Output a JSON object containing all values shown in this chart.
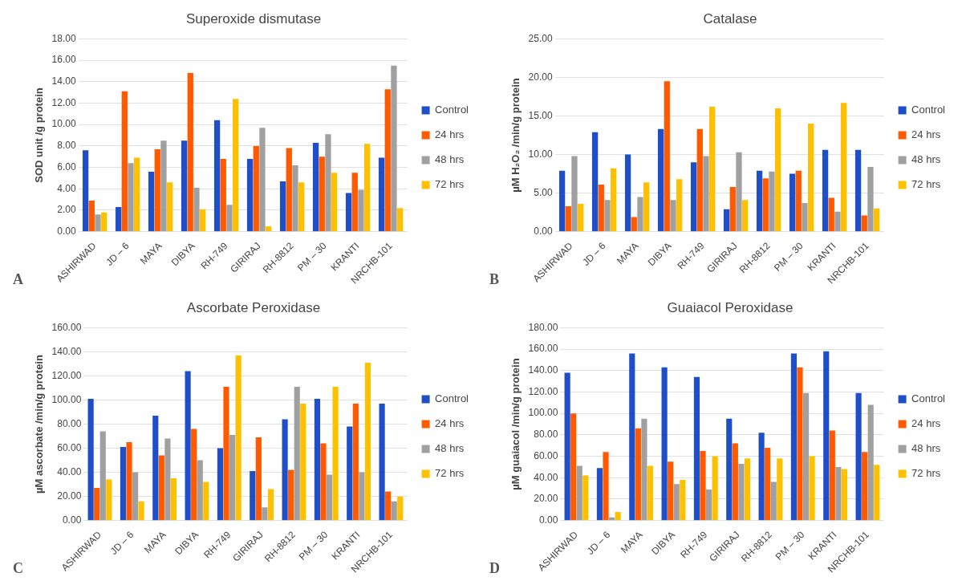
{
  "chart_data": [
    {
      "type": "bar",
      "title": "Superoxide dismutase",
      "ylabel": "SOD unit /g protein",
      "annotations": [
        "A"
      ],
      "legend": "right",
      "grid": "y",
      "categories": [
        "ASHIRWAD",
        "JD – 6",
        "MAYA",
        "DIBYA",
        "RH-749",
        "GIRIRAJ",
        "RH-8812",
        "PM – 30",
        "KRANTI",
        "NRCHB-101"
      ],
      "series": [
        {
          "name": "Control",
          "color": "#1f4fc8",
          "values": [
            7.6,
            2.3,
            5.6,
            8.5,
            10.4,
            6.8,
            4.7,
            8.3,
            3.6,
            6.9
          ]
        },
        {
          "name": "24 hrs",
          "color": "#ff5a00",
          "values": [
            2.9,
            13.1,
            7.7,
            14.8,
            6.8,
            8.0,
            7.8,
            7.0,
            5.5,
            13.3
          ]
        },
        {
          "name": "48 hrs",
          "color": "#a0a0a0",
          "values": [
            1.6,
            6.4,
            8.5,
            4.1,
            2.5,
            9.7,
            6.2,
            9.1,
            3.9,
            15.5
          ]
        },
        {
          "name": "72 hrs",
          "color": "#ffc000",
          "values": [
            1.8,
            6.9,
            4.6,
            2.1,
            12.4,
            0.5,
            4.6,
            5.5,
            8.2,
            2.2
          ]
        }
      ],
      "ylim": [
        0,
        18
      ],
      "yticks": [
        {
          "value": 0,
          "label": "0.00"
        },
        {
          "value": 2,
          "label": "2.00"
        },
        {
          "value": 4,
          "label": "4.00"
        },
        {
          "value": 6,
          "label": "6.00"
        },
        {
          "value": 8,
          "label": "8.00"
        },
        {
          "value": 10,
          "label": "10.00"
        },
        {
          "value": 12,
          "label": "12.00"
        },
        {
          "value": 14,
          "label": "14.00"
        },
        {
          "value": 16,
          "label": "16.00"
        },
        {
          "value": 18,
          "label": "18.00"
        }
      ]
    },
    {
      "type": "bar",
      "title": "Catalase",
      "ylabel": "µM H₂O₂ /min/g protein",
      "annotations": [
        "B"
      ],
      "legend": "right",
      "grid": "y",
      "categories": [
        "ASHIRWAD",
        "JD – 6",
        "MAYA",
        "DIBYA",
        "RH-749",
        "GIRIRAJ",
        "RH-8812",
        "PM – 30",
        "KRANTI",
        "NRCHB-101"
      ],
      "series": [
        {
          "name": "Control",
          "color": "#1f4fc8",
          "values": [
            7.9,
            12.9,
            10.0,
            13.3,
            9.0,
            2.9,
            7.9,
            7.5,
            10.6,
            10.6
          ]
        },
        {
          "name": "24 hrs",
          "color": "#ff5a00",
          "values": [
            3.3,
            6.1,
            1.9,
            19.5,
            13.3,
            5.8,
            6.9,
            7.9,
            4.4,
            2.1
          ]
        },
        {
          "name": "48 hrs",
          "color": "#a0a0a0",
          "values": [
            9.8,
            4.1,
            4.5,
            4.1,
            9.8,
            10.3,
            7.8,
            3.7,
            2.6,
            8.4
          ]
        },
        {
          "name": "72 hrs",
          "color": "#ffc000",
          "values": [
            3.6,
            8.2,
            6.4,
            6.8,
            16.2,
            4.1,
            16.0,
            14.0,
            16.7,
            3.0
          ]
        }
      ],
      "ylim": [
        0,
        25
      ],
      "yticks": [
        {
          "value": 0,
          "label": "0.00"
        },
        {
          "value": 5,
          "label": "5.00"
        },
        {
          "value": 10,
          "label": "10.00"
        },
        {
          "value": 15,
          "label": "15.00"
        },
        {
          "value": 20,
          "label": "20.00"
        },
        {
          "value": 25,
          "label": "25.00"
        }
      ]
    },
    {
      "type": "bar",
      "title": "Ascorbate Peroxidase",
      "ylabel": "µM ascorbate /min/g protein",
      "annotations": [
        "C"
      ],
      "legend": "right",
      "grid": "y",
      "categories": [
        "ASHIRWAD",
        "JD – 6",
        "MAYA",
        "DIBYA",
        "RH-749",
        "GIRIRAJ",
        "RH-8812",
        "PM – 30",
        "KRANTI",
        "NRCHB-101"
      ],
      "series": [
        {
          "name": "Control",
          "color": "#1f4fc8",
          "values": [
            101,
            61,
            87,
            124,
            60,
            41,
            84,
            101,
            78,
            97
          ]
        },
        {
          "name": "24 hrs",
          "color": "#ff5a00",
          "values": [
            27,
            65,
            54,
            76,
            111,
            69,
            42,
            64,
            97,
            24
          ]
        },
        {
          "name": "48 hrs",
          "color": "#a0a0a0",
          "values": [
            74,
            40,
            68,
            50,
            71,
            11,
            111,
            38,
            40,
            16
          ]
        },
        {
          "name": "72 hrs",
          "color": "#ffc000",
          "values": [
            34,
            16,
            35,
            32,
            137,
            26,
            97,
            111,
            131,
            20
          ]
        }
      ],
      "ylim": [
        0,
        160
      ],
      "yticks": [
        {
          "value": 0,
          "label": "0.00"
        },
        {
          "value": 20,
          "label": "20.00"
        },
        {
          "value": 40,
          "label": "40.00"
        },
        {
          "value": 60,
          "label": "60.00"
        },
        {
          "value": 80,
          "label": "80.00"
        },
        {
          "value": 100,
          "label": "100.00"
        },
        {
          "value": 120,
          "label": "120.00"
        },
        {
          "value": 140,
          "label": "140.00"
        },
        {
          "value": 160,
          "label": "160.00"
        }
      ]
    },
    {
      "type": "bar",
      "title": "Guaiacol Peroxidase",
      "ylabel": "µM guaiacol /min/g protein",
      "annotations": [
        "D"
      ],
      "legend": "right",
      "grid": "y",
      "categories": [
        "ASHIRWAD",
        "JD – 6",
        "MAYA",
        "DIBYA",
        "RH-749",
        "GIRIRAJ",
        "RH-8812",
        "PM – 30",
        "KRANTI",
        "NRCHB-101"
      ],
      "series": [
        {
          "name": "Control",
          "color": "#1f4fc8",
          "values": [
            138,
            49,
            156,
            143,
            134,
            95,
            82,
            156,
            158,
            119
          ]
        },
        {
          "name": "24 hrs",
          "color": "#ff5a00",
          "values": [
            100,
            64,
            86,
            55,
            65,
            72,
            68,
            143,
            84,
            64
          ]
        },
        {
          "name": "48 hrs",
          "color": "#a0a0a0",
          "values": [
            51,
            3,
            95,
            34,
            29,
            53,
            36,
            119,
            50,
            108
          ]
        },
        {
          "name": "72 hrs",
          "color": "#ffc000",
          "values": [
            42,
            8,
            51,
            38,
            60,
            58,
            58,
            60,
            48,
            52
          ]
        }
      ],
      "ylim": [
        0,
        180
      ],
      "yticks": [
        {
          "value": 0,
          "label": "0.00"
        },
        {
          "value": 20,
          "label": "20.00"
        },
        {
          "value": 40,
          "label": "40.00"
        },
        {
          "value": 60,
          "label": "60.00"
        },
        {
          "value": 80,
          "label": "80.00"
        },
        {
          "value": 100,
          "label": "100.00"
        },
        {
          "value": 120,
          "label": "120.00"
        },
        {
          "value": 140,
          "label": "140.00"
        },
        {
          "value": 160,
          "label": "160.00"
        },
        {
          "value": 180,
          "label": "180.00"
        }
      ]
    }
  ]
}
